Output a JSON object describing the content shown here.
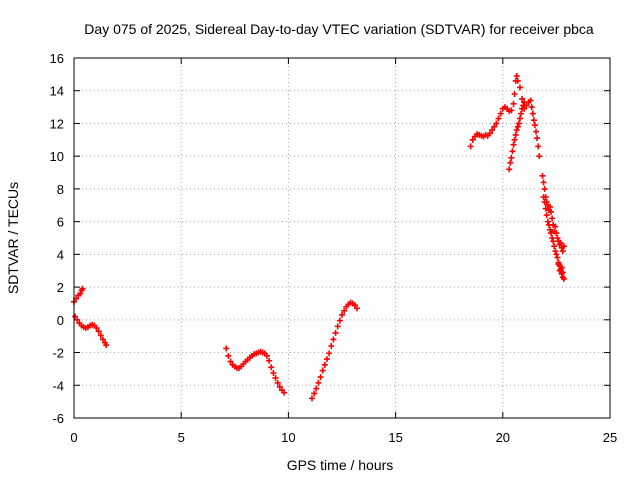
{
  "chart_data": {
    "type": "scatter",
    "title": "Day 075 of 2025, Sidereal Day-to-day VTEC variation (SDTVAR) for receiver pbca",
    "xlabel": "GPS time / hours",
    "ylabel": "SDTVAR / TECUs",
    "xlim": [
      0,
      25
    ],
    "ylim": [
      -6,
      16
    ],
    "xticks": [
      0,
      5,
      10,
      15,
      20,
      25
    ],
    "yticks": [
      -6,
      -4,
      -2,
      0,
      2,
      4,
      6,
      8,
      10,
      12,
      14,
      16
    ],
    "grid": true,
    "marker": "+",
    "series": [
      {
        "name": "SDTVAR",
        "color": "#ff0000",
        "segments": [
          {
            "x": [
              0.0,
              0.1,
              0.2,
              0.3,
              0.35,
              0.4
            ],
            "y": [
              1.1,
              1.3,
              1.5,
              1.6,
              1.8,
              1.9
            ]
          },
          {
            "x": [
              0.05,
              0.15,
              0.25,
              0.35,
              0.45,
              0.55,
              0.65,
              0.75,
              0.85,
              0.95,
              1.05,
              1.15,
              1.25,
              1.35,
              1.45,
              1.5
            ],
            "y": [
              0.2,
              0.0,
              -0.2,
              -0.35,
              -0.45,
              -0.5,
              -0.45,
              -0.35,
              -0.3,
              -0.35,
              -0.5,
              -0.7,
              -0.95,
              -1.2,
              -1.4,
              -1.55
            ]
          },
          {
            "x": [
              7.1,
              7.2,
              7.3,
              7.4,
              7.5,
              7.6,
              7.7,
              7.8,
              7.9,
              8.0,
              8.1,
              8.2,
              8.3,
              8.4,
              8.5,
              8.6,
              8.7,
              8.8,
              8.9,
              9.0,
              9.1,
              9.2,
              9.3,
              9.4,
              9.5,
              9.6,
              9.7,
              9.8
            ],
            "y": [
              -1.75,
              -2.2,
              -2.55,
              -2.75,
              -2.85,
              -2.95,
              -2.95,
              -2.85,
              -2.7,
              -2.55,
              -2.45,
              -2.3,
              -2.2,
              -2.1,
              -2.05,
              -2.0,
              -1.95,
              -2.0,
              -2.05,
              -2.2,
              -2.5,
              -2.9,
              -3.25,
              -3.55,
              -3.85,
              -4.1,
              -4.3,
              -4.45
            ]
          },
          {
            "x": [
              11.1,
              11.2,
              11.3,
              11.4,
              11.5,
              11.6,
              11.7,
              11.8,
              11.9,
              12.0,
              12.1,
              12.2,
              12.3,
              12.4,
              12.5,
              12.6,
              12.7,
              12.8,
              12.9,
              13.0,
              13.1,
              13.2
            ],
            "y": [
              -4.8,
              -4.5,
              -4.2,
              -3.85,
              -3.5,
              -3.1,
              -2.75,
              -2.4,
              -2.05,
              -1.6,
              -1.2,
              -0.8,
              -0.4,
              -0.05,
              0.3,
              0.55,
              0.8,
              0.95,
              1.05,
              1.0,
              0.9,
              0.7
            ]
          },
          {
            "x": [
              18.5,
              18.6,
              18.7,
              18.8,
              18.9,
              19.0,
              19.1,
              19.2,
              19.3,
              19.4,
              19.5,
              19.6,
              19.7,
              19.8,
              19.9,
              20.0,
              20.1,
              20.2,
              20.3,
              20.4,
              20.5,
              20.55,
              20.6,
              20.65,
              20.7,
              20.8
            ],
            "y": [
              10.6,
              11.0,
              11.2,
              11.35,
              11.3,
              11.25,
              11.2,
              11.3,
              11.25,
              11.4,
              11.6,
              11.8,
              12.0,
              12.3,
              12.6,
              12.9,
              13.0,
              12.9,
              12.75,
              12.8,
              13.2,
              13.8,
              14.6,
              14.9,
              14.6,
              14.2
            ]
          },
          {
            "x": [
              20.3,
              20.35,
              20.4,
              20.45,
              20.5,
              20.55,
              20.6,
              20.65,
              20.7,
              20.75,
              20.8,
              20.85,
              20.9,
              20.95,
              21.0
            ],
            "y": [
              9.2,
              9.6,
              9.9,
              10.3,
              10.7,
              11.0,
              11.3,
              11.6,
              11.8,
              12.0,
              12.3,
              12.6,
              12.9,
              13.1,
              13.3
            ]
          },
          {
            "x": [
              20.9,
              21.0,
              21.1,
              21.2,
              21.3,
              21.35,
              21.4,
              21.45,
              21.5,
              21.55,
              21.6,
              21.65,
              21.7
            ],
            "y": [
              13.5,
              12.9,
              13.1,
              13.3,
              13.4,
              13.0,
              12.6,
              12.2,
              11.9,
              11.5,
              11.1,
              10.6,
              10.0
            ]
          },
          {
            "x": [
              21.85,
              21.9,
              21.95,
              22.0,
              22.05,
              22.1,
              22.15,
              22.2,
              22.25,
              22.3,
              22.35,
              22.4,
              22.45,
              22.5,
              22.55,
              22.6,
              22.65,
              22.7,
              22.75,
              22.8,
              22.85
            ],
            "y": [
              8.8,
              8.4,
              8.0,
              7.5,
              7.2,
              7.0,
              6.7,
              6.9,
              6.6,
              6.2,
              5.8,
              5.4,
              5.7,
              5.3,
              5.0,
              4.8,
              4.6,
              4.7,
              4.4,
              4.2,
              4.5
            ]
          },
          {
            "x": [
              21.9,
              21.95,
              22.0,
              22.05,
              22.1,
              22.15,
              22.2,
              22.25,
              22.3,
              22.35,
              22.4,
              22.45,
              22.5,
              22.55,
              22.6,
              22.65,
              22.7,
              22.75,
              22.8,
              22.85
            ],
            "y": [
              7.5,
              7.2,
              6.8,
              6.4,
              6.0,
              5.8,
              5.5,
              5.3,
              5.0,
              4.8,
              4.5,
              4.2,
              4.0,
              3.8,
              3.5,
              3.3,
              3.0,
              2.8,
              2.6,
              2.5
            ]
          },
          {
            "x": [
              22.6,
              22.65,
              22.7,
              22.75,
              22.8
            ],
            "y": [
              3.4,
              3.0,
              3.1,
              3.2,
              2.9
            ]
          }
        ]
      }
    ]
  }
}
